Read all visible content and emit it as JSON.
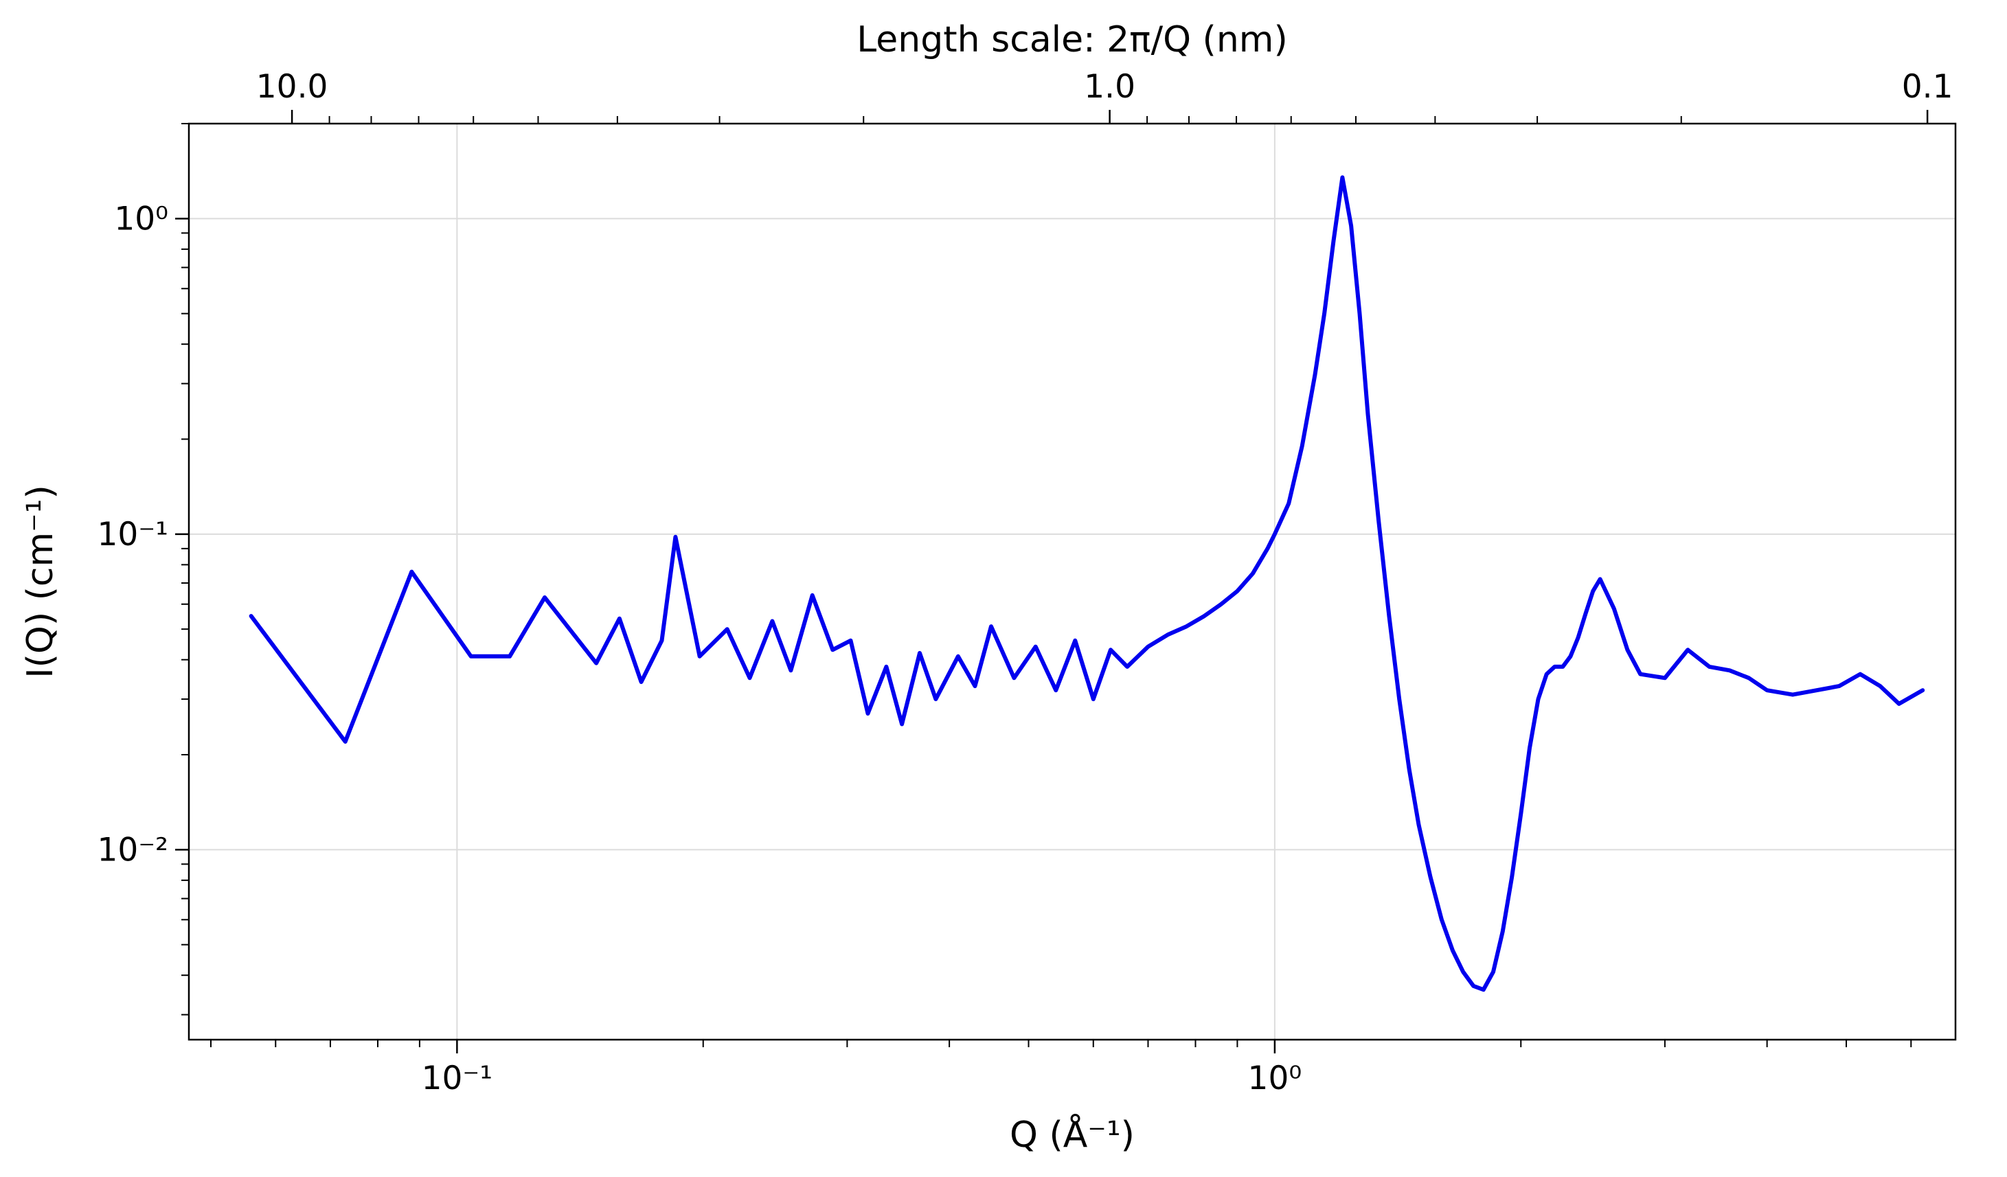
{
  "chart_data": {
    "type": "line",
    "title": "",
    "xlabel": "Q (Å⁻¹)",
    "ylabel": "I(Q) (cm⁻¹)",
    "top_xlabel": "Length scale: 2π/Q (nm)",
    "xscale": "log",
    "yscale": "log",
    "xlim": [
      0.047,
      6.8
    ],
    "ylim": [
      0.0025,
      2.0
    ],
    "grid": true,
    "legend": "none",
    "x_ticks": [
      {
        "value": 0.1,
        "label": "10⁻¹"
      },
      {
        "value": 1.0,
        "label": "10⁰"
      }
    ],
    "y_ticks": [
      {
        "value": 0.01,
        "label": "10⁻²"
      },
      {
        "value": 0.1,
        "label": "10⁻¹"
      },
      {
        "value": 1.0,
        "label": "10⁰"
      }
    ],
    "top_ticks": [
      {
        "value": 10.0,
        "label": "10.0"
      },
      {
        "value": 1.0,
        "label": "1.0"
      },
      {
        "value": 0.1,
        "label": "0.1"
      }
    ],
    "series": [
      {
        "color": "#0000ee",
        "x": [
          0.056,
          0.073,
          0.088,
          0.104,
          0.116,
          0.128,
          0.148,
          0.158,
          0.168,
          0.178,
          0.185,
          0.198,
          0.214,
          0.228,
          0.243,
          0.256,
          0.272,
          0.288,
          0.303,
          0.318,
          0.335,
          0.35,
          0.368,
          0.385,
          0.41,
          0.43,
          0.45,
          0.48,
          0.51,
          0.54,
          0.57,
          0.6,
          0.63,
          0.66,
          0.7,
          0.74,
          0.78,
          0.82,
          0.86,
          0.9,
          0.94,
          0.98,
          1.0,
          1.04,
          1.08,
          1.12,
          1.15,
          1.18,
          1.21,
          1.24,
          1.27,
          1.3,
          1.34,
          1.38,
          1.42,
          1.46,
          1.5,
          1.55,
          1.6,
          1.65,
          1.7,
          1.75,
          1.8,
          1.85,
          1.9,
          1.95,
          2.0,
          2.05,
          2.1,
          2.15,
          2.2,
          2.25,
          2.3,
          2.35,
          2.4,
          2.45,
          2.5,
          2.6,
          2.7,
          2.8,
          3.0,
          3.2,
          3.4,
          3.6,
          3.8,
          4.0,
          4.3,
          4.6,
          4.9,
          5.2,
          5.5,
          5.8,
          6.2
        ],
        "y": [
          0.055,
          0.022,
          0.076,
          0.041,
          0.041,
          0.063,
          0.039,
          0.054,
          0.034,
          0.046,
          0.098,
          0.041,
          0.05,
          0.035,
          0.053,
          0.037,
          0.064,
          0.043,
          0.046,
          0.027,
          0.038,
          0.025,
          0.042,
          0.03,
          0.041,
          0.033,
          0.051,
          0.035,
          0.044,
          0.032,
          0.046,
          0.03,
          0.043,
          0.038,
          0.044,
          0.048,
          0.051,
          0.055,
          0.06,
          0.066,
          0.075,
          0.09,
          0.1,
          0.125,
          0.19,
          0.32,
          0.5,
          0.85,
          1.35,
          0.95,
          0.5,
          0.24,
          0.11,
          0.055,
          0.03,
          0.018,
          0.012,
          0.0082,
          0.006,
          0.0048,
          0.0041,
          0.0037,
          0.0036,
          0.0041,
          0.0055,
          0.0082,
          0.013,
          0.021,
          0.03,
          0.036,
          0.038,
          0.038,
          0.041,
          0.047,
          0.056,
          0.066,
          0.072,
          0.058,
          0.043,
          0.036,
          0.035,
          0.043,
          0.038,
          0.037,
          0.035,
          0.032,
          0.031,
          0.032,
          0.033,
          0.036,
          0.033,
          0.029,
          0.032
        ]
      }
    ]
  }
}
